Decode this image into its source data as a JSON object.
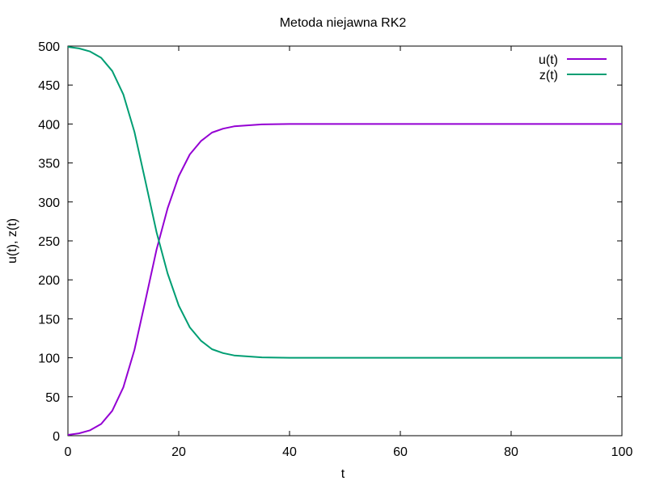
{
  "chart_data": {
    "type": "line",
    "title": "Metoda niejawna RK2",
    "xlabel": "t",
    "ylabel": "u(t), z(t)",
    "xlim": [
      0,
      100
    ],
    "ylim": [
      0,
      500
    ],
    "xticks": [
      0,
      20,
      40,
      60,
      80,
      100
    ],
    "yticks": [
      0,
      50,
      100,
      150,
      200,
      250,
      300,
      350,
      400,
      450,
      500
    ],
    "grid": false,
    "legend_position": "top-right",
    "series": [
      {
        "name": "u(t)",
        "color": "#9400d3",
        "x": [
          0,
          2,
          4,
          6,
          8,
          10,
          12,
          14,
          16,
          18,
          20,
          22,
          24,
          26,
          28,
          30,
          35,
          40,
          50,
          60,
          70,
          80,
          90,
          100
        ],
        "y": [
          1,
          3,
          7,
          15,
          32,
          62,
          110,
          174,
          239,
          292,
          333,
          361,
          378,
          389,
          394,
          397,
          399.5,
          400,
          400,
          400,
          400,
          400,
          400,
          400
        ]
      },
      {
        "name": "z(t)",
        "color": "#009e73",
        "x": [
          0,
          2,
          4,
          6,
          8,
          10,
          12,
          14,
          16,
          18,
          20,
          22,
          24,
          26,
          28,
          30,
          35,
          40,
          50,
          60,
          70,
          80,
          90,
          100
        ],
        "y": [
          499,
          497,
          493,
          485,
          468,
          438,
          390,
          326,
          261,
          208,
          167,
          139,
          122,
          111,
          106,
          103,
          100.5,
          100,
          100,
          100,
          100,
          100,
          100,
          100
        ]
      }
    ]
  }
}
